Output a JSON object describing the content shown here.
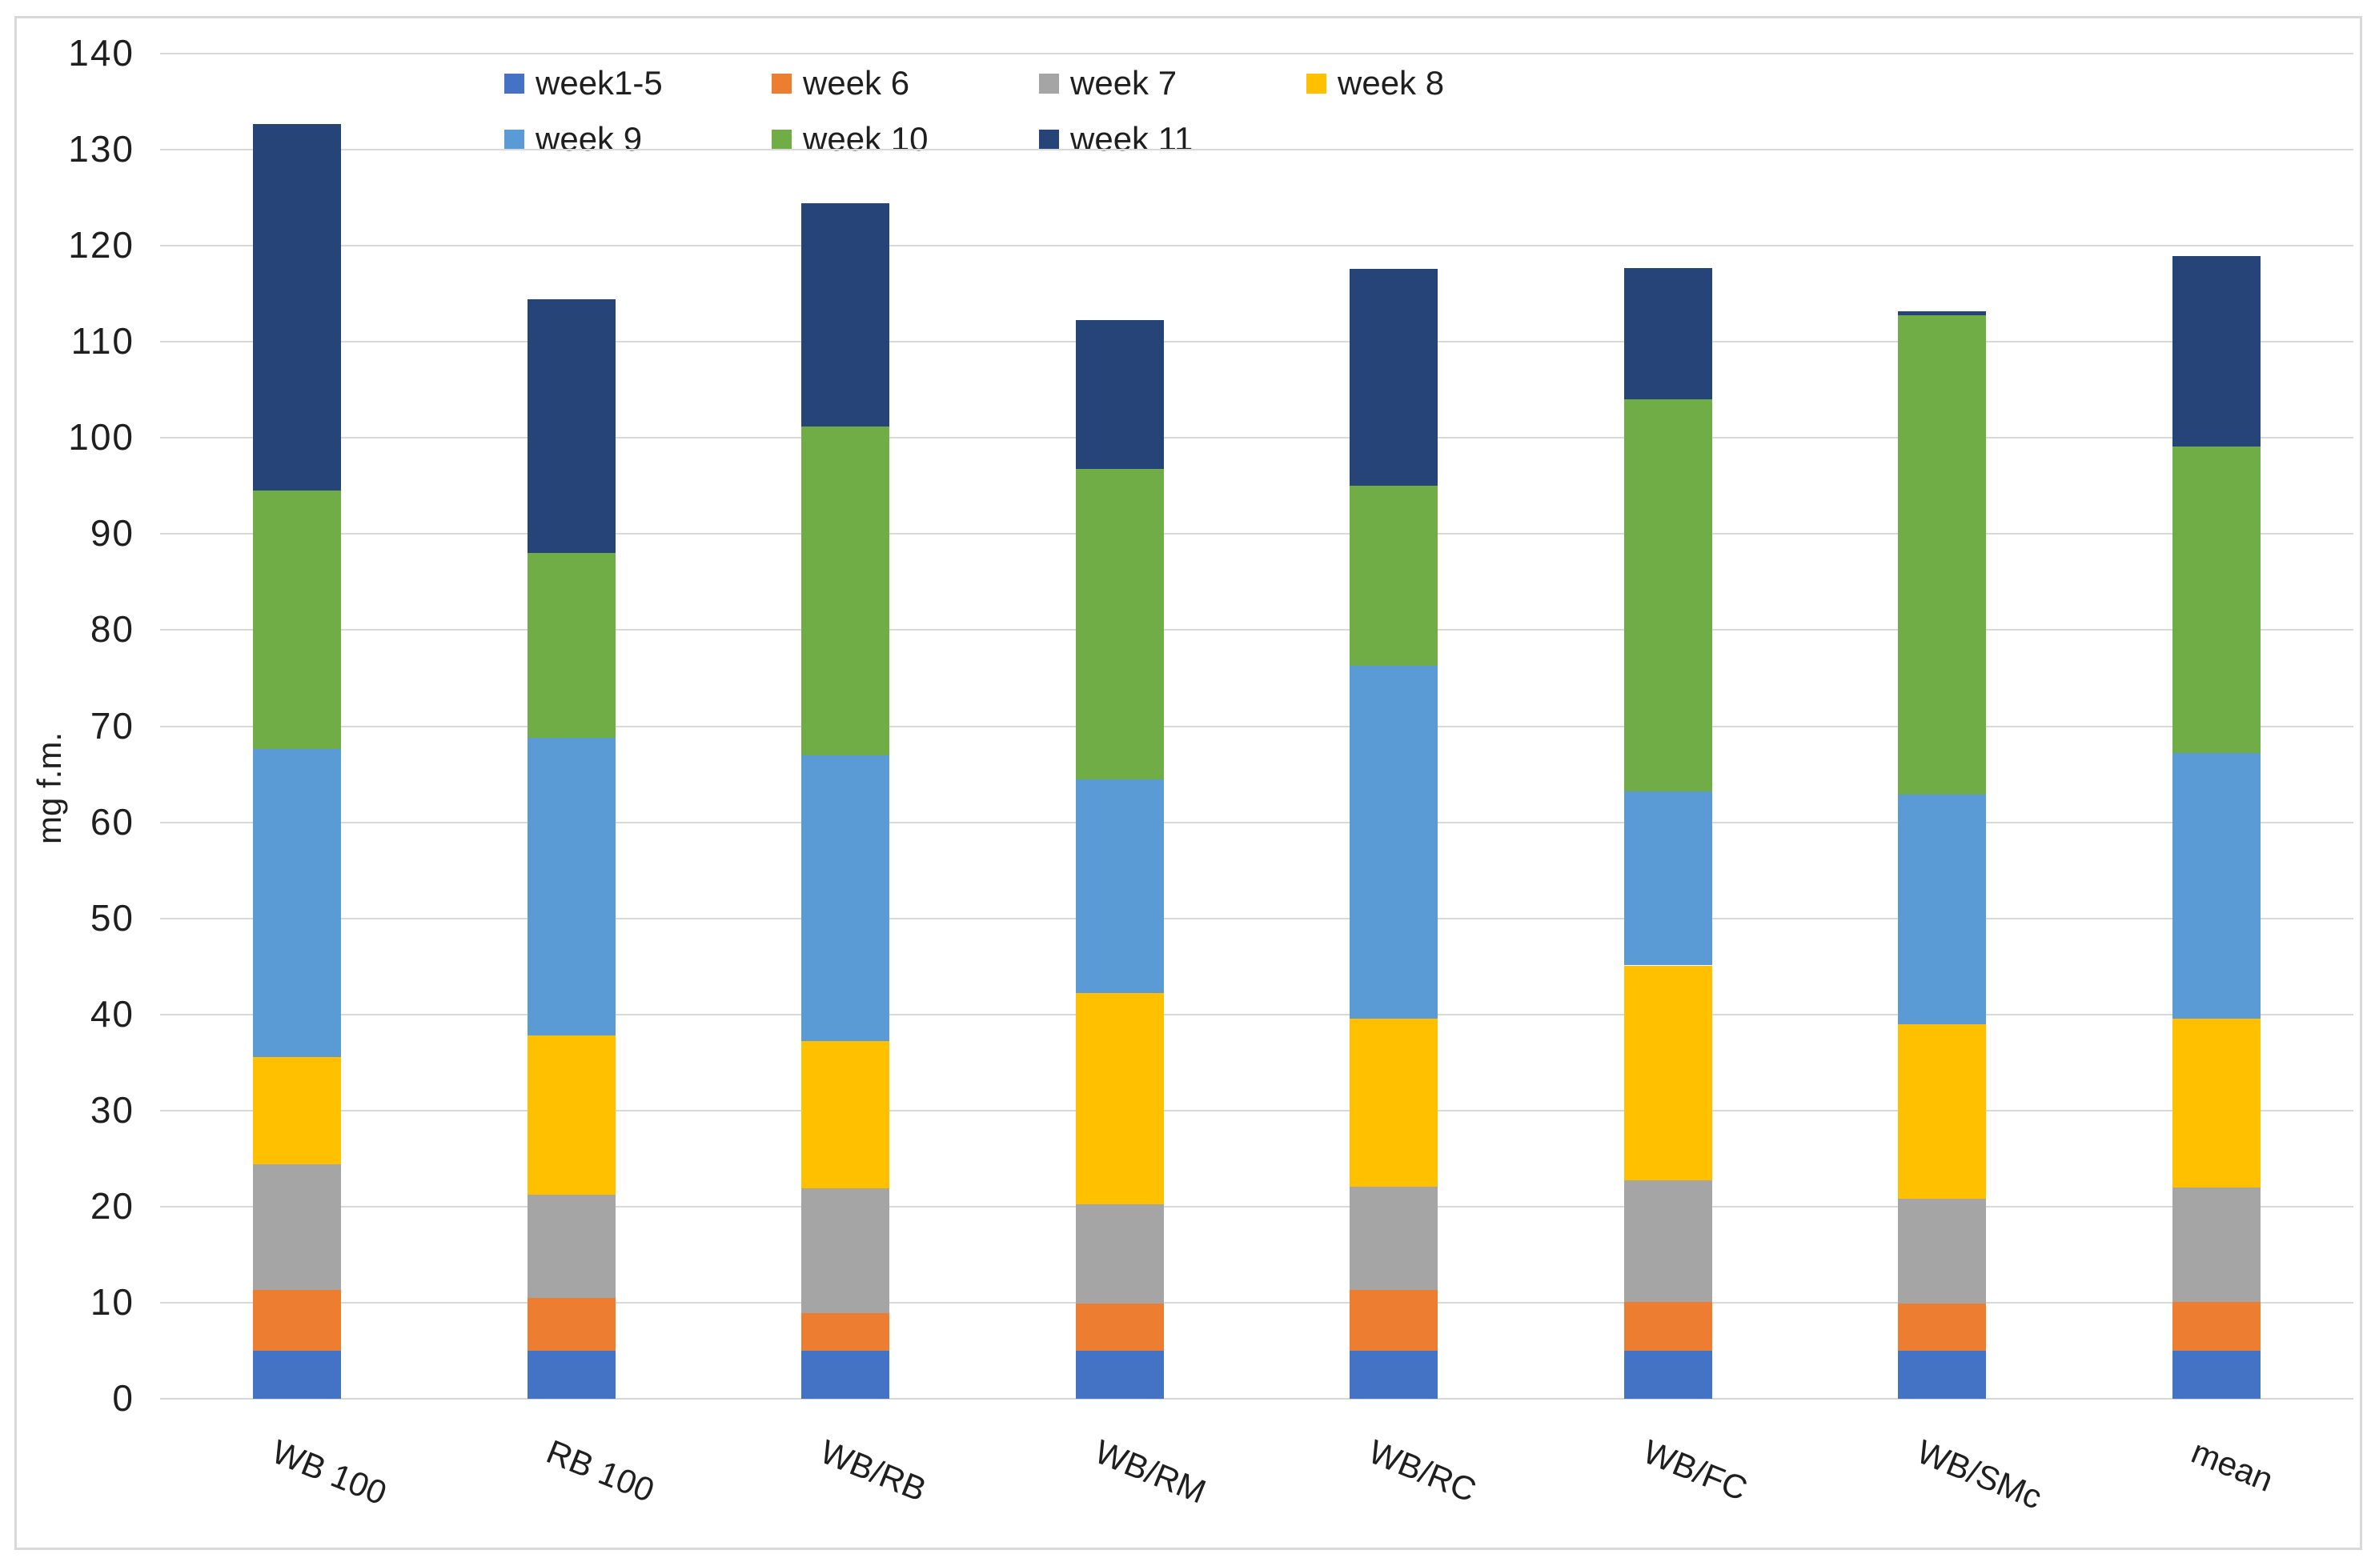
{
  "chart_data": {
    "type": "bar",
    "stacked": true,
    "title": "",
    "ylabel": "mg f.m.",
    "xlabel": "",
    "ylim": [
      0,
      140
    ],
    "ytick_step": 10,
    "y_tick_labels": [
      "0",
      "10",
      "20",
      "30",
      "40",
      "50",
      "60",
      "70",
      "80",
      "90",
      "100",
      "110",
      "120",
      "130",
      "140"
    ],
    "grid": true,
    "legend_position": "top",
    "categories": [
      "WB 100",
      "RB 100",
      "WB/RB",
      "WB/RM",
      "WB/RC",
      "WB/FC",
      "WB/SMc",
      "mean"
    ],
    "series": [
      {
        "name": "week1-5",
        "color": "#4472C4",
        "values": [
          5.0,
          5.0,
          5.0,
          5.0,
          5.0,
          5.0,
          5.0,
          5.0
        ]
      },
      {
        "name": "week 6",
        "color": "#ED7D31",
        "values": [
          6.3,
          5.5,
          3.9,
          4.9,
          6.3,
          5.1,
          4.9,
          5.1
        ]
      },
      {
        "name": "week 7",
        "color": "#A5A5A5",
        "values": [
          13.1,
          10.7,
          13.0,
          10.3,
          10.8,
          12.6,
          10.9,
          11.9
        ]
      },
      {
        "name": "week 8",
        "color": "#FFC000",
        "values": [
          11.2,
          16.6,
          15.3,
          22.0,
          17.5,
          22.4,
          18.2,
          17.6
        ]
      },
      {
        "name": "week 9",
        "color": "#5B9BD5",
        "values": [
          32.0,
          31.0,
          29.8,
          22.3,
          36.7,
          18.1,
          23.9,
          27.6
        ]
      },
      {
        "name": "week 10",
        "color": "#70AD47",
        "values": [
          26.9,
          19.2,
          34.2,
          32.3,
          18.7,
          40.8,
          49.9,
          31.9
        ]
      },
      {
        "name": "week 11",
        "color": "#264478",
        "values": [
          38.2,
          26.4,
          23.2,
          15.5,
          22.6,
          13.7,
          0.4,
          19.8
        ]
      }
    ],
    "bar_totals": [
      132.7,
      114.4,
      124.4,
      112.3,
      117.6,
      117.7,
      113.2,
      118.9
    ]
  },
  "colors": {
    "gridline": "#d9d9d9",
    "frame_border": "#d9d9d9",
    "background": "#ffffff",
    "text": "#1f1f1f"
  }
}
